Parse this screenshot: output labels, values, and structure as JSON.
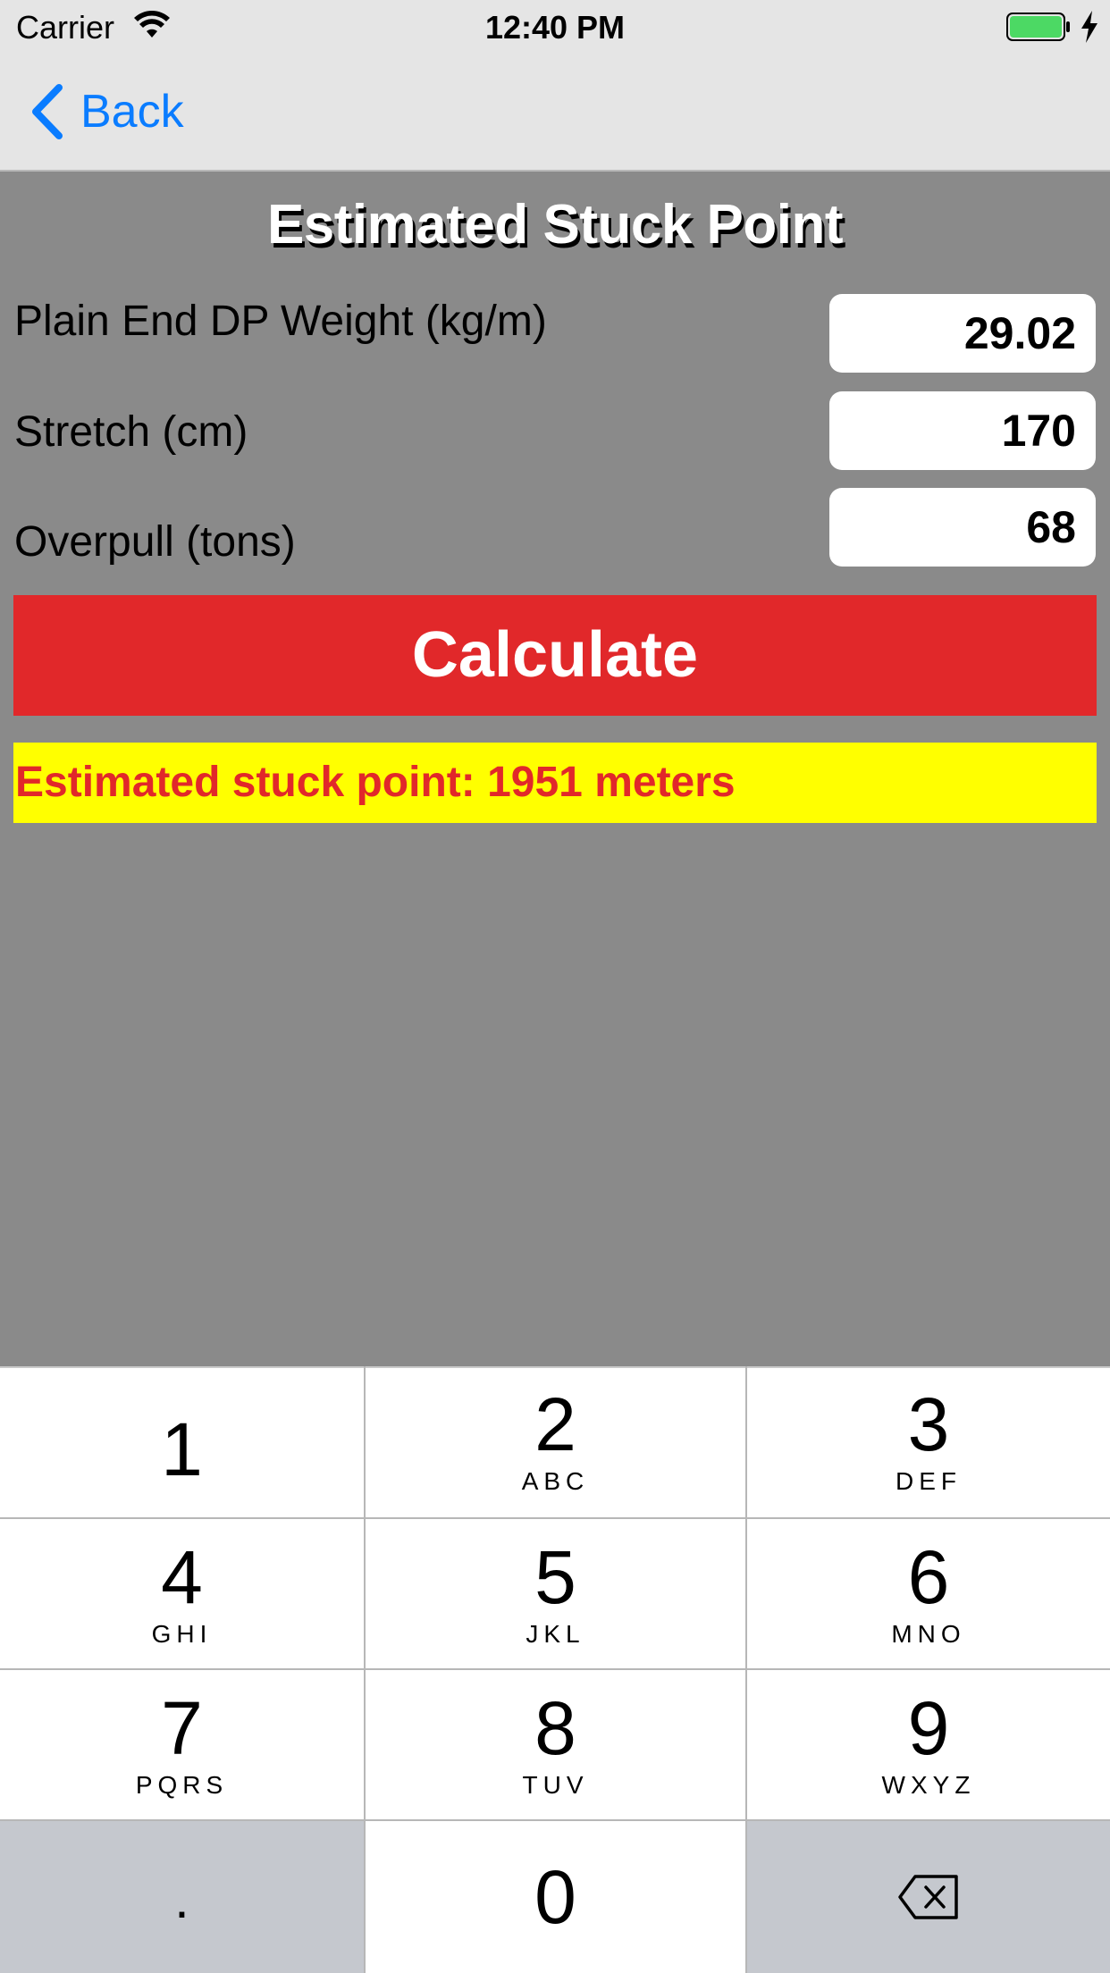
{
  "status_bar": {
    "carrier": "Carrier",
    "time": "12:40 PM",
    "battery_color": "#4cd964"
  },
  "nav": {
    "back_label": "Back",
    "accent": "#0a7cff"
  },
  "title": "Estimated Stuck Point",
  "fields": [
    {
      "label": "Plain End DP Weight (kg/m)",
      "value": "29.02"
    },
    {
      "label": "Stretch (cm)",
      "value": "170"
    },
    {
      "label": "Overpull (tons)",
      "value": "68"
    }
  ],
  "calculate_label": "Calculate",
  "result_text": "Estimated stuck point: 1951 meters",
  "colors": {
    "background": "#8a8a8a",
    "button": "#e1282a",
    "result_bg": "#ffff00",
    "result_text": "#e1282a"
  },
  "keypad": {
    "keys": [
      {
        "num": "1",
        "letters": ""
      },
      {
        "num": "2",
        "letters": "ABC"
      },
      {
        "num": "3",
        "letters": "DEF"
      },
      {
        "num": "4",
        "letters": "GHI"
      },
      {
        "num": "5",
        "letters": "JKL"
      },
      {
        "num": "6",
        "letters": "MNO"
      },
      {
        "num": "7",
        "letters": "PQRS"
      },
      {
        "num": "8",
        "letters": "TUV"
      },
      {
        "num": "9",
        "letters": "WXYZ"
      }
    ],
    "decimal": ".",
    "zero": "0",
    "delete_icon": "delete-backspace-icon"
  }
}
